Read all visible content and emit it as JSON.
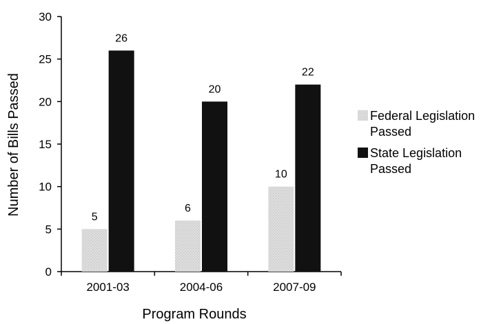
{
  "chart_data": {
    "type": "bar",
    "categories": [
      "2001-03",
      "2004-06",
      "2007-09"
    ],
    "series": [
      {
        "name": "Federal Legislation Passed",
        "values": [
          5,
          6,
          10
        ],
        "color": "#d9d9d9"
      },
      {
        "name": "State Legislation Passed",
        "values": [
          26,
          20,
          22
        ],
        "color": "#111111"
      }
    ],
    "xlabel": "Program Rounds",
    "ylabel": "Number of Bills Passed",
    "ylim": [
      0,
      30
    ],
    "yticks": [
      0,
      5,
      10,
      15,
      20,
      25,
      30
    ],
    "grid": false,
    "legend": {
      "position": "right",
      "entries": [
        {
          "line1": "Federal Legislation",
          "line2": "Passed"
        },
        {
          "line1": "State Legislation",
          "line2": "Passed"
        }
      ]
    }
  }
}
